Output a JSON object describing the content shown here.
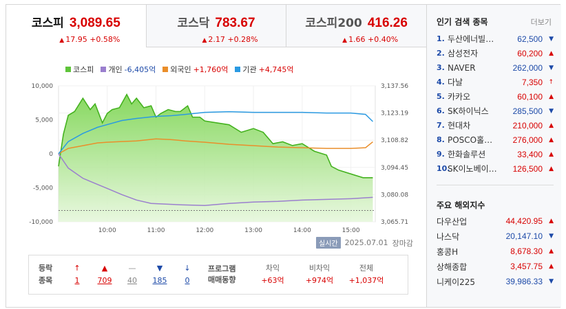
{
  "tabs": [
    {
      "name": "코스피",
      "value": "3,089.65",
      "change": "17.95 +0.58%",
      "arrow": "▲"
    },
    {
      "name": "코스닥",
      "value": "783.67",
      "change": "2.17 +0.28%",
      "arrow": "▲"
    },
    {
      "name": "코스피200",
      "value": "416.26",
      "change": "1.66 +0.40%",
      "arrow": "▲"
    }
  ],
  "legend": {
    "kospi": "코스피",
    "individual_label": "개인",
    "individual_value": "-6,405억",
    "foreign_label": "외국인",
    "foreign_value": "+1,760억",
    "institution_label": "기관",
    "institution_value": "+4,745억"
  },
  "colors": {
    "kospi": "#5ec43a",
    "individual": "#9b7fce",
    "foreign": "#ea8e2a",
    "institution": "#2a9ae2",
    "up": "#d80000",
    "down": "#1d4aa8"
  },
  "timeline": {
    "live": "실시간",
    "date": "2025.07.01",
    "status": "장마감"
  },
  "breadth": {
    "label1": "등락",
    "label2": "종목",
    "items": [
      {
        "icon": "↑",
        "count": "1",
        "tone": "up"
      },
      {
        "icon": "▲",
        "count": "709",
        "tone": "up"
      },
      {
        "icon": "—",
        "count": "40",
        "tone": "flat"
      },
      {
        "icon": "▼",
        "count": "185",
        "tone": "down"
      },
      {
        "icon": "↓",
        "count": "0",
        "tone": "down"
      }
    ]
  },
  "program": {
    "label1": "프로그램",
    "label2": "매매동향",
    "cols": [
      {
        "head": "차익",
        "value": "+63억"
      },
      {
        "head": "비차익",
        "value": "+974억"
      },
      {
        "head": "전체",
        "value": "+1,037억"
      }
    ]
  },
  "popular": {
    "title": "인기 검색 종목",
    "more": "더보기",
    "items": [
      {
        "rank": "1.",
        "name": "두산에너빌…",
        "price": "62,500",
        "dir": "▼",
        "tone": "down"
      },
      {
        "rank": "2.",
        "name": "삼성전자",
        "price": "60,200",
        "dir": "▲",
        "tone": "up"
      },
      {
        "rank": "3.",
        "name": "NAVER",
        "price": "262,000",
        "dir": "▼",
        "tone": "down"
      },
      {
        "rank": "4.",
        "name": "다날",
        "price": "7,350",
        "dir": "↑",
        "tone": "up"
      },
      {
        "rank": "5.",
        "name": "카카오",
        "price": "60,100",
        "dir": "▲",
        "tone": "up"
      },
      {
        "rank": "6.",
        "name": "SK하이닉스",
        "price": "285,500",
        "dir": "▼",
        "tone": "down"
      },
      {
        "rank": "7.",
        "name": "현대차",
        "price": "210,000",
        "dir": "▲",
        "tone": "up"
      },
      {
        "rank": "8.",
        "name": "POSCO홀…",
        "price": "276,000",
        "dir": "▲",
        "tone": "up"
      },
      {
        "rank": "9.",
        "name": "한화솔루션",
        "price": "33,400",
        "dir": "▲",
        "tone": "up"
      },
      {
        "rank": "10.",
        "name": "SK이노베이…",
        "price": "126,500",
        "dir": "▲",
        "tone": "up"
      }
    ]
  },
  "world": {
    "title": "주요 해외지수",
    "items": [
      {
        "name": "다우산업",
        "price": "44,420.95",
        "dir": "▲",
        "tone": "up"
      },
      {
        "name": "나스닥",
        "price": "20,147.10",
        "dir": "▼",
        "tone": "down"
      },
      {
        "name": "홍콩H",
        "price": "8,678.30",
        "dir": "▲",
        "tone": "up"
      },
      {
        "name": "상해종합",
        "price": "3,457.75",
        "dir": "▲",
        "tone": "up"
      },
      {
        "name": "니케이225",
        "price": "39,986.33",
        "dir": "▼",
        "tone": "down"
      }
    ]
  },
  "chart_data": {
    "type": "area",
    "x_ticks": [
      "10:00",
      "11:00",
      "12:00",
      "13:00",
      "14:00",
      "15:00"
    ],
    "y_left_ticks": [
      "10,000",
      "5,000",
      "0",
      "-5,000",
      "-10,000"
    ],
    "y_right_ticks": [
      "3,137.56",
      "3,123.19",
      "3,108.82",
      "3,094.45",
      "3,080.08",
      "3,065.71"
    ],
    "y_left_range": [
      -10000,
      10000
    ],
    "y_right_range": [
      3065.71,
      3137.56
    ],
    "series": [
      {
        "name": "코스피",
        "axis": "right",
        "x": [
          9.0,
          9.1,
          9.2,
          9.33,
          9.5,
          9.65,
          9.75,
          9.9,
          10.0,
          10.1,
          10.25,
          10.4,
          10.5,
          10.6,
          10.75,
          10.9,
          11.0,
          11.1,
          11.25,
          11.4,
          11.5,
          11.65,
          11.75,
          11.9,
          12.0,
          12.25,
          12.5,
          12.75,
          13.0,
          13.2,
          13.4,
          13.6,
          13.8,
          14.0,
          14.25,
          14.5,
          14.6,
          14.75,
          15.0,
          15.25,
          15.45
        ],
        "values": [
          3095,
          3112,
          3122,
          3124,
          3131,
          3125,
          3128,
          3118,
          3123,
          3125,
          3126,
          3133,
          3128,
          3131,
          3126,
          3127,
          3121,
          3123,
          3125,
          3124,
          3124,
          3127,
          3121,
          3121,
          3119,
          3118,
          3117,
          3113,
          3115,
          3113,
          3107,
          3108,
          3106,
          3107,
          3103,
          3101,
          3095,
          3093,
          3091,
          3089,
          3089
        ]
      },
      {
        "name": "개인",
        "axis": "left",
        "x": [
          9.0,
          9.2,
          9.5,
          9.8,
          10.0,
          10.3,
          10.6,
          10.9,
          11.2,
          11.5,
          12.0,
          12.5,
          13.0,
          13.5,
          14.0,
          14.5,
          15.0,
          15.45
        ],
        "values": [
          0,
          -2100,
          -3600,
          -4500,
          -5100,
          -6000,
          -6800,
          -7300,
          -7400,
          -7500,
          -7600,
          -7300,
          -7100,
          -7000,
          -6800,
          -6700,
          -6600,
          -6400
        ]
      },
      {
        "name": "외국인",
        "axis": "left",
        "x": [
          9.0,
          9.2,
          9.5,
          9.8,
          10.0,
          10.3,
          10.6,
          11.0,
          11.3,
          11.6,
          12.0,
          12.5,
          13.0,
          13.5,
          14.0,
          14.5,
          15.0,
          15.3,
          15.45
        ],
        "values": [
          0,
          800,
          1200,
          1600,
          1700,
          1800,
          1900,
          2200,
          2100,
          1900,
          1700,
          1400,
          1200,
          1000,
          900,
          800,
          800,
          900,
          1760
        ]
      },
      {
        "name": "기관",
        "axis": "left",
        "x": [
          9.0,
          9.2,
          9.5,
          9.8,
          10.0,
          10.3,
          10.6,
          11.0,
          11.3,
          11.6,
          12.0,
          12.5,
          13.0,
          13.5,
          14.0,
          14.5,
          15.0,
          15.3,
          15.45
        ],
        "values": [
          0,
          1800,
          3000,
          3900,
          4300,
          4900,
          5200,
          5500,
          5600,
          5800,
          6100,
          6200,
          6100,
          6100,
          6100,
          6000,
          6000,
          5800,
          4745
        ]
      }
    ]
  }
}
